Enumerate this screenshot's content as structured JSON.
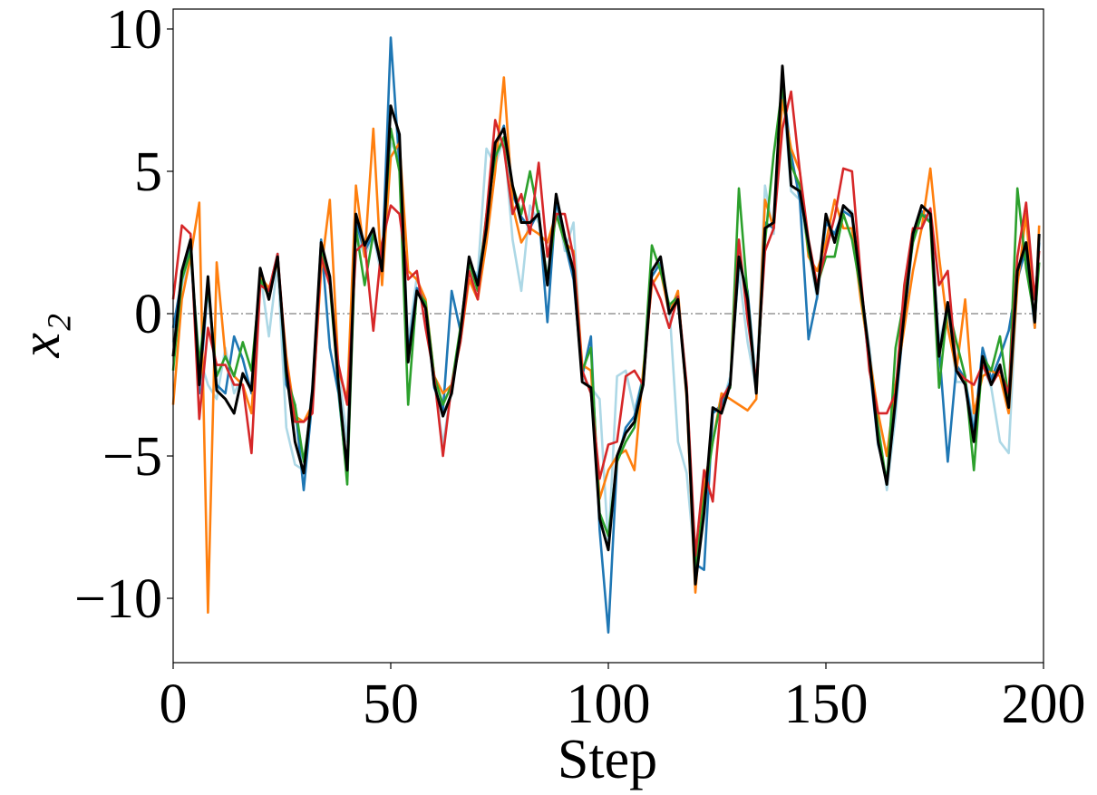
{
  "chart_data": {
    "type": "line",
    "xlabel": "Step",
    "ylabel": "x₂",
    "xlim": [
      0,
      200
    ],
    "ylim": [
      -12.26,
      10.7
    ],
    "xticks": [
      0,
      50,
      100,
      150,
      200
    ],
    "yticks": [
      {
        "value": -10,
        "label": "−10"
      },
      {
        "value": -5,
        "label": "−5"
      },
      0,
      5,
      10
    ],
    "hline": 0,
    "x": [
      0,
      2,
      4,
      6,
      8,
      10,
      12,
      14,
      16,
      18,
      20,
      22,
      24,
      26,
      28,
      30,
      32,
      34,
      36,
      38,
      40,
      42,
      44,
      46,
      48,
      50,
      52,
      54,
      56,
      58,
      60,
      62,
      64,
      66,
      68,
      70,
      72,
      74,
      76,
      78,
      80,
      82,
      84,
      86,
      88,
      90,
      92,
      94,
      96,
      98,
      100,
      102,
      104,
      106,
      108,
      110,
      112,
      114,
      116,
      118,
      120,
      122,
      124,
      126,
      128,
      130,
      132,
      134,
      136,
      138,
      140,
      142,
      144,
      146,
      148,
      150,
      152,
      154,
      156,
      158,
      160,
      162,
      164,
      166,
      168,
      170,
      172,
      174,
      176,
      178,
      180,
      182,
      184,
      186,
      188,
      190,
      192,
      194,
      196,
      198,
      199
    ],
    "series": [
      {
        "color": "#add8e6",
        "values": [
          -1.0,
          1.0,
          2.0,
          -1.5,
          -2.5,
          -3.0,
          -1.2,
          -2.8,
          -2.2,
          -2.5,
          1.5,
          -0.8,
          1.8,
          -4.0,
          -5.3,
          -5.5,
          -2.5,
          2.2,
          1.2,
          -2.0,
          -4.5,
          3.0,
          2.0,
          2.8,
          1.2,
          6.0,
          5.5,
          -1.0,
          1.3,
          0.2,
          -2.4,
          -4.6,
          -2.6,
          -0.9,
          1.6,
          1.4,
          5.8,
          5.2,
          6.2,
          2.6,
          0.8,
          3.8,
          3.2,
          1.2,
          4.0,
          2.2,
          3.2,
          -2.2,
          -2.6,
          -3.0,
          -8.2,
          -2.2,
          -2.0,
          -3.4,
          -2.2,
          1.6,
          1.8,
          0.3,
          -4.5,
          -5.6,
          -9.0,
          -7.2,
          -3.5,
          -3.3,
          -2.2,
          1.5,
          -1.0,
          -2.7,
          4.5,
          2.8,
          8.0,
          4.3,
          4.0,
          2.2,
          0.5,
          3.4,
          2.7,
          3.7,
          3.6,
          0.9,
          -1.2,
          -3.8,
          -6.2,
          -3.6,
          0.2,
          2.5,
          3.5,
          3.4,
          -1.0,
          0.2,
          -2.4,
          -2.4,
          -3.8,
          -1.8,
          -2.6,
          -4.5,
          -4.9,
          1.2,
          2.4,
          -0.4,
          2.6
        ]
      },
      {
        "color": "#1f77b4",
        "values": [
          -0.5,
          1.2,
          2.4,
          -2.8,
          1.0,
          -2.5,
          -2.8,
          -0.8,
          -1.6,
          -2.8,
          1.4,
          0.8,
          2.1,
          -2.5,
          -3.2,
          -6.2,
          -3.0,
          2.6,
          -1.2,
          -2.8,
          -5.8,
          3.2,
          2.2,
          2.8,
          1.6,
          9.7,
          5.2,
          -1.4,
          0.9,
          0.4,
          -2.6,
          -3.4,
          0.8,
          -0.6,
          1.8,
          1.2,
          3.2,
          5.8,
          6.6,
          4.2,
          3.4,
          3.0,
          3.6,
          -0.3,
          4.0,
          2.5,
          1.2,
          -2.2,
          -0.8,
          -7.6,
          -11.2,
          -5.2,
          -4.0,
          -3.6,
          -2.2,
          1.3,
          1.8,
          0.2,
          0.4,
          -2.6,
          -8.8,
          -9.0,
          -3.5,
          -3.2,
          -2.4,
          1.8,
          0.8,
          -2.6,
          3.2,
          3.0,
          8.2,
          5.6,
          4.0,
          -0.9,
          0.6,
          3.2,
          2.8,
          3.6,
          3.4,
          0.8,
          -1.8,
          -4.6,
          -5.8,
          -3.2,
          -0.2,
          2.6,
          3.6,
          3.2,
          -1.2,
          -5.2,
          -1.8,
          -2.3,
          -4.2,
          -1.2,
          -2.3,
          -1.5,
          -0.6,
          1.2,
          2.3,
          -0.5,
          2.5
        ]
      },
      {
        "color": "#ff7f0e",
        "values": [
          -3.2,
          0.5,
          2.0,
          3.9,
          -10.5,
          1.8,
          -1.5,
          -2.2,
          -2.5,
          -3.5,
          1.3,
          0.9,
          1.8,
          -1.5,
          -3.6,
          -3.8,
          -3.2,
          1.5,
          4.0,
          -2.0,
          -3.0,
          4.5,
          2.0,
          6.5,
          1.0,
          5.5,
          6.0,
          1.5,
          1.2,
          0.5,
          -2.2,
          -2.8,
          -2.5,
          -1.0,
          1.2,
          0.5,
          2.5,
          5.0,
          8.3,
          3.8,
          2.5,
          3.0,
          2.8,
          2.5,
          3.5,
          2.5,
          2.2,
          -1.8,
          -2.0,
          -6.5,
          -5.5,
          -5.0,
          -4.8,
          -5.5,
          -2.0,
          1.0,
          1.5,
          0.0,
          0.8,
          -3.0,
          -9.8,
          -6.0,
          -4.5,
          -2.8,
          -3.0,
          -3.2,
          -3.4,
          -3.0,
          4.0,
          3.0,
          7.5,
          5.8,
          5.0,
          2.0,
          1.5,
          2.5,
          4.0,
          3.0,
          3.0,
          0.5,
          -1.5,
          -3.5,
          -5.0,
          -2.5,
          -0.5,
          1.5,
          3.0,
          5.1,
          2.0,
          -0.5,
          -2.0,
          0.5,
          -3.5,
          -2.2,
          -2.0,
          -2.2,
          -3.5,
          1.0,
          3.5,
          -0.5,
          3.1
        ]
      },
      {
        "color": "#2ca02c",
        "values": [
          -2.0,
          1.2,
          2.2,
          -1.8,
          1.0,
          -2.2,
          -1.5,
          -2.2,
          -1.0,
          -2.0,
          1.2,
          0.6,
          2.0,
          -2.2,
          -3.2,
          -5.2,
          -3.0,
          2.2,
          1.0,
          -2.6,
          -6.0,
          3.0,
          1.0,
          2.8,
          1.8,
          6.5,
          5.0,
          -3.2,
          0.8,
          0.4,
          -2.2,
          -3.2,
          -2.5,
          -0.5,
          1.8,
          0.8,
          3.5,
          5.5,
          6.2,
          4.5,
          3.5,
          5.0,
          3.4,
          1.2,
          3.5,
          2.5,
          1.6,
          -2.0,
          -1.2,
          -7.0,
          -7.8,
          -5.2,
          -4.5,
          -4.0,
          -2.3,
          2.4,
          1.5,
          0.3,
          0.6,
          -2.6,
          -9.0,
          -6.5,
          -4.5,
          -3.0,
          -2.6,
          4.4,
          0.6,
          -2.7,
          2.5,
          5.6,
          8.0,
          5.2,
          4.5,
          2.2,
          1.0,
          2.0,
          2.0,
          3.5,
          2.6,
          0.8,
          -1.6,
          -4.0,
          -6.0,
          -1.2,
          0.5,
          2.5,
          3.5,
          3.2,
          -2.6,
          0.3,
          -1.0,
          -2.2,
          -5.5,
          -1.5,
          -2.0,
          -0.8,
          -3.0,
          4.4,
          1.6,
          -0.2,
          1.8
        ]
      },
      {
        "color": "#d62728",
        "values": [
          0.5,
          3.1,
          2.8,
          -3.7,
          -0.5,
          -1.8,
          -1.8,
          -2.5,
          -2.5,
          -4.9,
          1.0,
          0.8,
          2.1,
          -1.8,
          -3.8,
          -3.8,
          -3.5,
          2.0,
          1.0,
          -1.8,
          -3.2,
          2.2,
          2.5,
          -0.6,
          2.5,
          3.8,
          3.5,
          1.2,
          1.5,
          -0.5,
          -2.2,
          -5.0,
          -2.5,
          -1.0,
          1.5,
          0.5,
          3.5,
          6.8,
          5.8,
          3.5,
          4.2,
          2.8,
          5.3,
          2.0,
          3.5,
          3.5,
          2.0,
          -2.0,
          -2.8,
          -5.8,
          -4.6,
          -4.5,
          -2.2,
          -2.0,
          -2.5,
          1.2,
          0.5,
          -0.5,
          0.6,
          -2.5,
          -8.5,
          -5.5,
          -6.6,
          -3.0,
          -2.5,
          2.6,
          -0.2,
          -2.4,
          2.2,
          3.0,
          6.5,
          7.8,
          5.0,
          2.6,
          1.0,
          2.2,
          3.4,
          5.1,
          5.0,
          1.3,
          -2.0,
          -3.5,
          -3.5,
          -2.8,
          1.0,
          3.0,
          3.0,
          3.7,
          1.0,
          1.5,
          -2.0,
          -2.3,
          -2.5,
          -1.8,
          -2.5,
          -2.0,
          -2.8,
          2.0,
          3.9,
          0.5,
          2.2
        ]
      },
      {
        "color": "#000000",
        "values": [
          -1.5,
          1.5,
          2.6,
          -2.5,
          1.3,
          -2.7,
          -3.0,
          -3.5,
          -2.1,
          -2.7,
          1.6,
          0.5,
          2.0,
          -2.0,
          -4.5,
          -5.6,
          -2.7,
          2.5,
          1.3,
          -2.5,
          -5.5,
          3.5,
          2.4,
          3.0,
          1.5,
          7.3,
          6.3,
          -1.7,
          0.8,
          0.2,
          -2.5,
          -3.6,
          -2.8,
          -0.7,
          2.0,
          1.0,
          3.0,
          6.0,
          6.5,
          4.5,
          3.2,
          3.2,
          3.5,
          1.0,
          4.2,
          2.7,
          1.5,
          -2.4,
          -2.6,
          -7.2,
          -8.3,
          -5.0,
          -4.2,
          -3.8,
          -2.5,
          1.5,
          2.0,
          0.0,
          0.5,
          -2.8,
          -9.5,
          -7.0,
          -3.3,
          -3.5,
          -2.5,
          2.0,
          0.5,
          -2.8,
          3.0,
          3.2,
          8.7,
          4.5,
          4.3,
          2.5,
          0.7,
          3.5,
          2.5,
          3.8,
          3.5,
          1.0,
          -1.5,
          -4.5,
          -6.0,
          -3.0,
          0.0,
          2.8,
          3.8,
          3.5,
          -1.5,
          0.4,
          -2.0,
          -2.5,
          -4.5,
          -1.5,
          -2.5,
          -1.8,
          -3.3,
          1.5,
          2.5,
          -0.3,
          2.8
        ]
      }
    ]
  }
}
